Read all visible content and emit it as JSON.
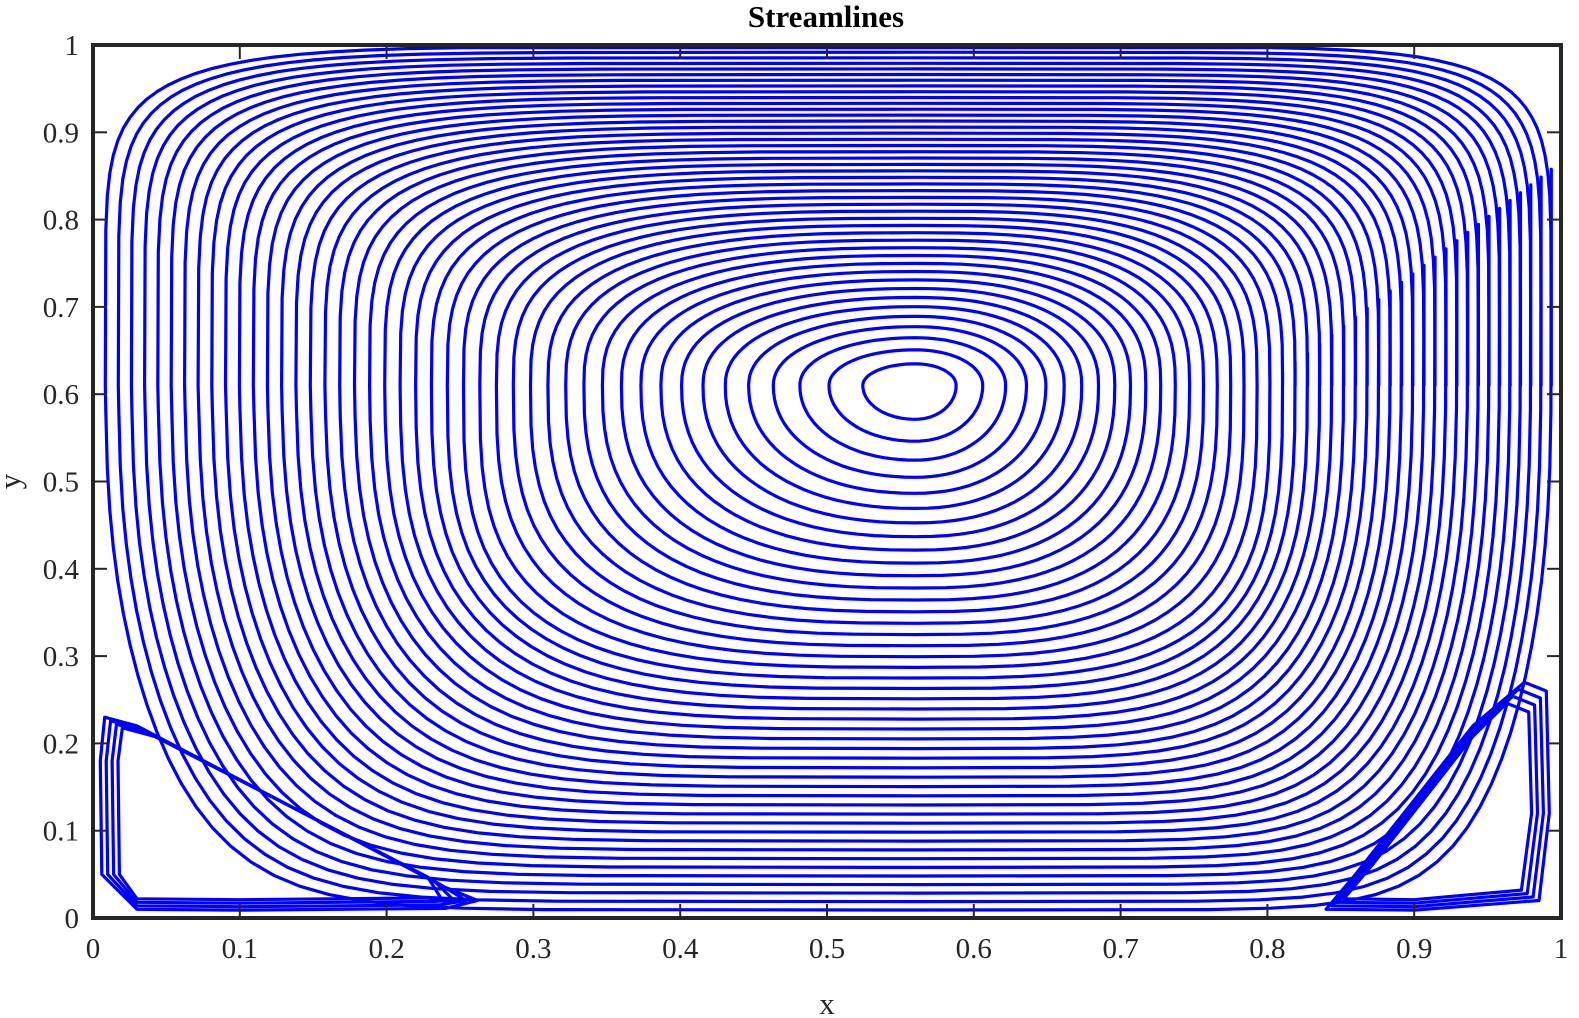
{
  "chart_data": {
    "type": "contour",
    "title": "Streamlines",
    "xlabel": "x",
    "ylabel": "y",
    "xlim": [
      0,
      1
    ],
    "ylim": [
      0,
      1
    ],
    "x_ticks": [
      "0",
      "0.1",
      "0.2",
      "0.3",
      "0.4",
      "0.5",
      "0.6",
      "0.7",
      "0.8",
      "0.9",
      "1"
    ],
    "y_ticks": [
      "0",
      "0.1",
      "0.2",
      "0.3",
      "0.4",
      "0.5",
      "0.6",
      "0.7",
      "0.8",
      "0.9",
      "1"
    ],
    "line_color": "#0000ff",
    "axis_color": "#262626",
    "grid": false,
    "primary_vortex": {
      "center": [
        0.56,
        0.61
      ],
      "contour_count": 45
    },
    "secondary_vortices": [
      {
        "name": "bottom-left",
        "center": [
          0.08,
          0.12
        ],
        "extent_x": [
          0.0,
          0.26
        ],
        "extent_y": [
          0.0,
          0.25
        ]
      },
      {
        "name": "bottom-right",
        "center": [
          0.96,
          0.12
        ],
        "extent_x": [
          0.81,
          1.0
        ],
        "extent_y": [
          0.0,
          0.27
        ]
      }
    ]
  }
}
